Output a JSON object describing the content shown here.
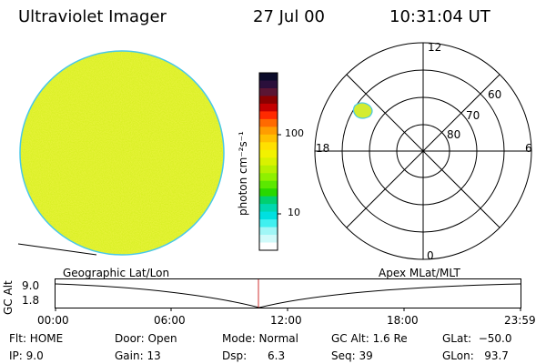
{
  "header": {
    "instrument": "Ultraviolet Imager",
    "date": "27 Jul 00",
    "time": "10:31:04 UT"
  },
  "colorbar": {
    "unit_label": "photon cm⁻²s⁻¹",
    "ticks": [
      "100",
      "10"
    ],
    "colors": [
      "#0b0b2a",
      "#2a0f3b",
      "#5a1533",
      "#8b0000",
      "#c40000",
      "#ff2a00",
      "#ff6a00",
      "#ff9d00",
      "#ffc000",
      "#ffe000",
      "#f2f200",
      "#d9f200",
      "#b6f000",
      "#8ff000",
      "#5be800",
      "#28d800",
      "#00d070",
      "#00d8b0",
      "#00e0e0",
      "#40f0f0",
      "#a0f6f6",
      "#d0fafa",
      "#ffffff"
    ]
  },
  "polar": {
    "mlt_labels": [
      "12",
      "18",
      "6",
      "0"
    ],
    "lat_labels": [
      "60",
      "70",
      "80"
    ]
  },
  "altitude_panel": {
    "left_label": "Geographic Lat/Lon",
    "right_label": "Apex MLat/MLT",
    "axis_label": "GC Alt",
    "y_ticks": [
      "9.0",
      "1.8"
    ],
    "x_ticks": [
      "00:00",
      "06:00",
      "12:00",
      "18:00",
      "23:59"
    ]
  },
  "status": {
    "flt": "Flt: HOME",
    "ip": "IP:  9.0",
    "door": "Door: Open",
    "gain": "Gain: 13",
    "mode": "Mode: Normal",
    "dsp": "Dsp:      6.3",
    "gcalt": "GC Alt: 1.6 Re",
    "seq": "Seq: 39",
    "glat": "GLat:  −50.0",
    "glon": "GLon:   93.7"
  }
}
